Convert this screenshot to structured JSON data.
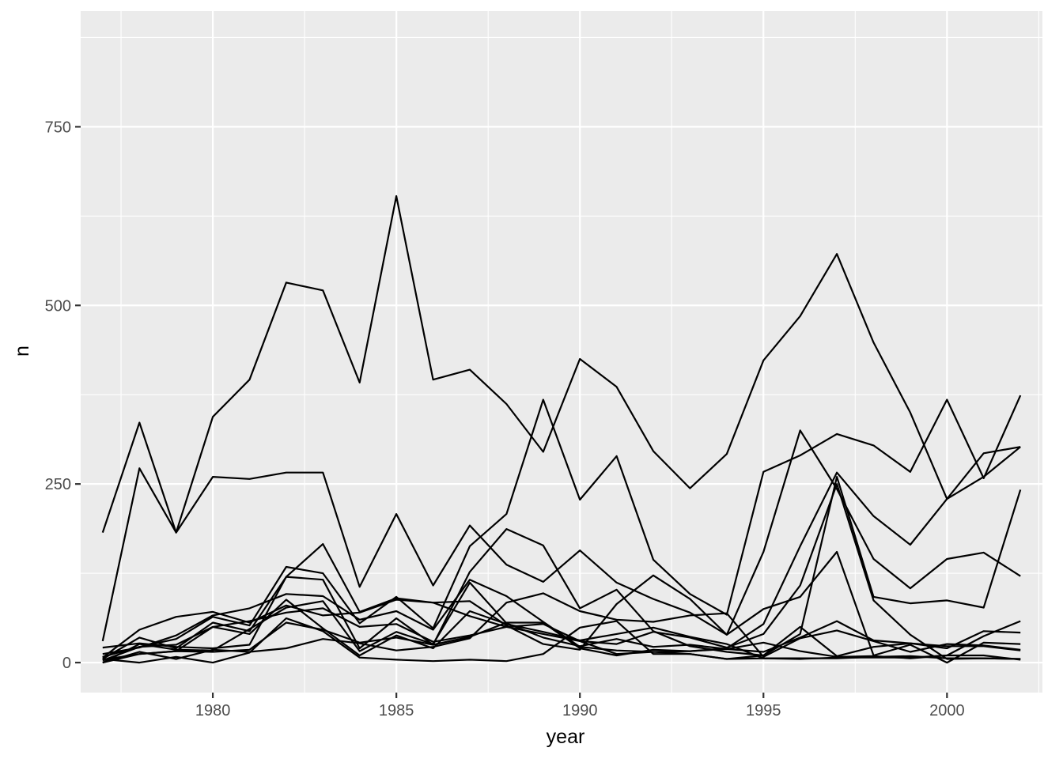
{
  "chart_data": {
    "type": "line",
    "xlabel": "year",
    "ylabel": "n",
    "xlim": [
      1976.4,
      2002.6
    ],
    "ylim": [
      -42,
      912
    ],
    "x_ticks": [
      1980,
      1985,
      1990,
      1995,
      2000
    ],
    "y_ticks": [
      0,
      250,
      500,
      750
    ],
    "x_tick_labels": [
      "1980",
      "1985",
      "1990",
      "1995",
      "2000"
    ],
    "y_tick_labels": [
      "0",
      "250",
      "500",
      "750"
    ],
    "grid": true,
    "legend": "none",
    "x": [
      1977,
      1978,
      1979,
      1980,
      1981,
      1982,
      1983,
      1984,
      1985,
      1986,
      1987,
      1988,
      1989,
      1990,
      1991,
      1992,
      1993,
      1994,
      1995,
      1996,
      1997,
      1998,
      1999,
      2000,
      2001,
      2002
    ],
    "series": [
      {
        "values": [
          182,
          336,
          182,
          344,
          396,
          532,
          521,
          392,
          653,
          396,
          410,
          362,
          295,
          425,
          386,
          296,
          244,
          292,
          423,
          485,
          572,
          448,
          350,
          229,
          293,
          302
        ]
      },
      {
        "values": [
          30,
          272,
          182,
          260,
          257,
          266,
          266,
          106,
          208,
          108,
          192,
          137,
          113,
          157,
          112,
          89,
          70,
          39,
          75,
          92,
          155,
          10,
          25,
          0,
          28,
          26
        ]
      },
      {
        "values": [
          3,
          22,
          33,
          64,
          52,
          134,
          125,
          55,
          92,
          48,
          163,
          208,
          368,
          228,
          289,
          144,
          96,
          67,
          267,
          290,
          320,
          304,
          267,
          368,
          258,
          374
        ]
      },
      {
        "values": [
          5,
          35,
          20,
          56,
          44,
          120,
          116,
          20,
          62,
          25,
          127,
          187,
          164,
          76,
          102,
          44,
          23,
          15,
          10,
          40,
          260,
          92,
          83,
          87,
          77,
          242
        ]
      },
      {
        "values": [
          21,
          27,
          22,
          20,
          25,
          120,
          166,
          71,
          90,
          84,
          86,
          52,
          26,
          18,
          82,
          122,
          89,
          39,
          155,
          325,
          243,
          145,
          104,
          145,
          154,
          121
        ]
      },
      {
        "values": [
          12,
          21,
          38,
          66,
          76,
          96,
          93,
          60,
          72,
          46,
          116,
          93,
          57,
          22,
          17,
          15,
          16,
          20,
          54,
          163,
          266,
          205,
          165,
          229,
          260,
          302
        ]
      },
      {
        "values": [
          7,
          46,
          64,
          71,
          56,
          80,
          66,
          70,
          88,
          84,
          65,
          50,
          40,
          30,
          26,
          43,
          35,
          21,
          40,
          108,
          250,
          87,
          39,
          5,
          6,
          5
        ]
      },
      {
        "values": [
          0,
          26,
          18,
          17,
          47,
          77,
          86,
          16,
          43,
          26,
          112,
          55,
          35,
          23,
          33,
          22,
          25,
          19,
          28,
          16,
          8,
          9,
          6,
          10,
          10,
          4
        ]
      },
      {
        "values": [
          0,
          12,
          16,
          50,
          58,
          70,
          76,
          50,
          54,
          29,
          38,
          50,
          54,
          30,
          12,
          15,
          12,
          5,
          6,
          5,
          7,
          7,
          7,
          10,
          37,
          58
        ]
      },
      {
        "values": [
          8,
          22,
          25,
          50,
          40,
          88,
          48,
          10,
          38,
          20,
          72,
          54,
          43,
          31,
          40,
          49,
          36,
          26,
          6,
          6,
          6,
          8,
          9,
          6,
          6,
          5
        ]
      },
      {
        "values": [
          4,
          12,
          16,
          15,
          18,
          56,
          46,
          28,
          35,
          25,
          36,
          56,
          56,
          20,
          10,
          18,
          16,
          19,
          15,
          35,
          58,
          31,
          27,
          23,
          23,
          17
        ]
      },
      {
        "values": [
          0,
          15,
          5,
          18,
          15,
          20,
          33,
          27,
          17,
          22,
          34,
          84,
          97,
          72,
          60,
          57,
          66,
          69,
          8,
          34,
          45,
          30,
          15,
          26,
          24,
          18
        ]
      },
      {
        "values": [
          5,
          0,
          8,
          0,
          14,
          62,
          44,
          7,
          4,
          2,
          4,
          2,
          12,
          49,
          58,
          12,
          12,
          5,
          10,
          50,
          9,
          22,
          27,
          20,
          44,
          42
        ]
      }
    ]
  }
}
